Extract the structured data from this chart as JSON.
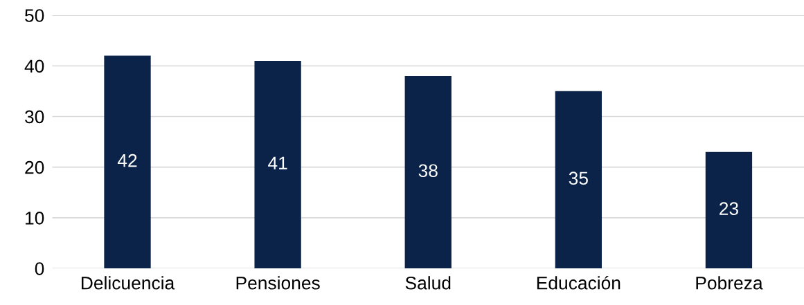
{
  "chart_data": {
    "type": "bar",
    "categories": [
      "Delicuencia",
      "Pensiones",
      "Salud",
      "Educación",
      "Pobreza"
    ],
    "values": [
      42,
      41,
      38,
      35,
      23
    ],
    "color": "#0b2348",
    "ylim": [
      0,
      50
    ],
    "yticks": [
      0,
      10,
      20,
      30,
      40,
      50
    ],
    "grid": "y",
    "data_labels": true
  }
}
